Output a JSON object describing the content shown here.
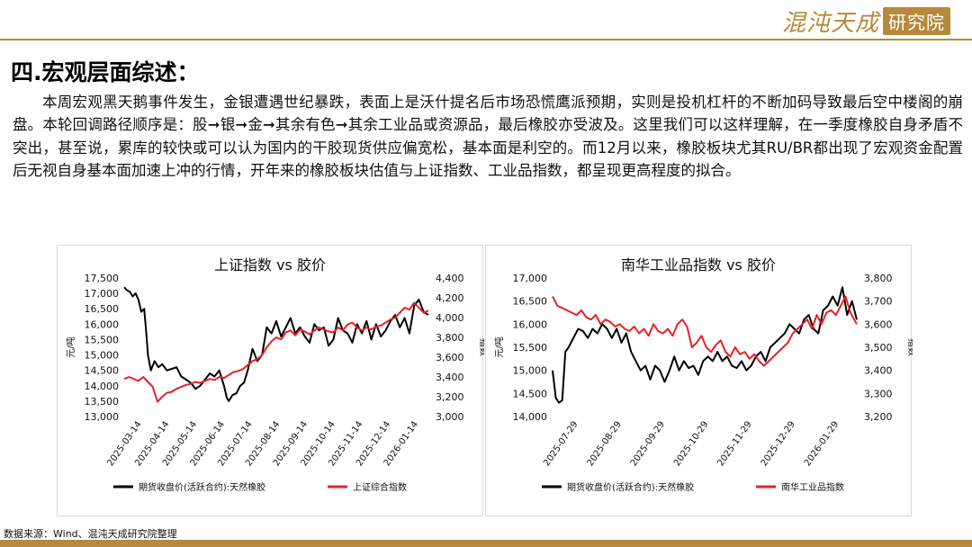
{
  "header": {
    "logo_main": "混沌天成",
    "logo_sub": "研究院"
  },
  "section_title": "四.宏观层面综述：",
  "paragraph": "本周宏观黑天鹅事件发生，金银遭遇世纪暴跌，表面上是沃什提名后市场恐慌鹰派预期，实则是投机杠杆的不断加码导致最后空中楼阁的崩盘。本轮回调路径顺序是：股➞银➞金➞其余有色➞其余工业品或资源品，最后橡胶亦受波及。这里我们可以这样理解，在一季度橡胶自身矛盾不突出，甚至说，累库的较快或可以认为国内的干胶现货供应偏宽松，基本面是利空的。而12月以来，橡胶板块尤其RU/BR都出现了宏观资金配置后无视自身基本面加速上冲的行情，开年来的橡胶板块估值与上证指数、工业品指数，都呈现更高程度的拟合。",
  "source": "数据来源：Wind、混沌天成研究院整理",
  "colors": {
    "rubber": "#000000",
    "index": "#e8202a",
    "accent": "#b58a3c"
  },
  "chart_data": [
    {
      "type": "line",
      "title": "上证指数 vs 胶价",
      "ylabel_left": "元/吨",
      "ylabel_right": "指数",
      "ylim_left": [
        13000,
        17500
      ],
      "ylim_right": [
        3000,
        4400
      ],
      "yticks_left": [
        "13,000",
        "13,500",
        "14,000",
        "14,500",
        "15,000",
        "15,500",
        "16,000",
        "16,500",
        "17,000",
        "17,500"
      ],
      "yticks_right": [
        "3,000",
        "3,200",
        "3,400",
        "3,600",
        "3,800",
        "4,000",
        "4,200",
        "4,400"
      ],
      "xticks": [
        "2025-03-14",
        "2025-04-14",
        "2025-05-14",
        "2025-06-14",
        "2025-07-14",
        "2025-08-14",
        "2025-09-14",
        "2025-10-14",
        "2025-11-14",
        "2025-12-14",
        "2026-01-14"
      ],
      "series": [
        {
          "name": "期货收盘价(活跃合约):天然橡胶",
          "axis": "left",
          "x": [
            0,
            3,
            6,
            9,
            12,
            15,
            18,
            21,
            23,
            25,
            28,
            32,
            36,
            40,
            45,
            50,
            55,
            60,
            65,
            70,
            75,
            80,
            85,
            90,
            95,
            100,
            105,
            108,
            110,
            114,
            118,
            122,
            126,
            130,
            135,
            140,
            145,
            150,
            155,
            160,
            165,
            170,
            175,
            180,
            185,
            190,
            195,
            200,
            205,
            210,
            215,
            220,
            225,
            230,
            235,
            240,
            245,
            250,
            255,
            260,
            265,
            270,
            275,
            280,
            285,
            290,
            295,
            300,
            305,
            310,
            315,
            320
          ],
          "values": [
            17200,
            17100,
            17050,
            16900,
            17000,
            16800,
            16400,
            16500,
            15800,
            15000,
            14500,
            14800,
            14600,
            14700,
            14500,
            14550,
            14600,
            14300,
            14200,
            14100,
            13900,
            14000,
            14200,
            14400,
            14300,
            14500,
            14000,
            13600,
            13500,
            13700,
            13750,
            14000,
            14100,
            14500,
            15200,
            14800,
            15000,
            15900,
            15700,
            16100,
            15600,
            15900,
            16200,
            15700,
            15900,
            15600,
            15400,
            16000,
            15800,
            15900,
            15300,
            15500,
            16200,
            15800,
            15700,
            15400,
            16000,
            15700,
            16100,
            15500,
            16000,
            15600,
            15800,
            16100,
            16300,
            15900,
            16200,
            15700,
            16600,
            16800,
            16400,
            16300
          ]
        },
        {
          "name": "上证综合指数",
          "axis": "right",
          "x": [
            0,
            5,
            10,
            15,
            20,
            25,
            30,
            35,
            40,
            45,
            50,
            55,
            60,
            65,
            70,
            75,
            80,
            85,
            90,
            95,
            100,
            105,
            110,
            115,
            120,
            125,
            130,
            135,
            140,
            145,
            150,
            155,
            160,
            165,
            170,
            175,
            180,
            185,
            190,
            195,
            200,
            205,
            210,
            215,
            220,
            225,
            230,
            235,
            240,
            245,
            250,
            255,
            260,
            265,
            270,
            275,
            280,
            285,
            290,
            295,
            300,
            305,
            310,
            315,
            320
          ],
          "values": [
            3380,
            3400,
            3380,
            3360,
            3400,
            3350,
            3300,
            3150,
            3200,
            3240,
            3250,
            3280,
            3300,
            3320,
            3330,
            3350,
            3340,
            3360,
            3380,
            3370,
            3400,
            3390,
            3420,
            3450,
            3460,
            3480,
            3520,
            3560,
            3580,
            3620,
            3700,
            3760,
            3800,
            3780,
            3850,
            3870,
            3820,
            3880,
            3860,
            3830,
            3870,
            3900,
            3880,
            3860,
            3850,
            3900,
            3870,
            3930,
            3950,
            3900,
            3870,
            3900,
            3880,
            3910,
            3920,
            3950,
            3980,
            4000,
            4050,
            4100,
            4080,
            4150,
            4100,
            4050,
            4070
          ]
        }
      ]
    },
    {
      "type": "line",
      "title": "南华工业品指数 vs 胶价",
      "ylabel_left": "元/吨",
      "ylabel_right": "指数",
      "ylim_left": [
        14000,
        17000
      ],
      "ylim_right": [
        3200,
        3800
      ],
      "yticks_left": [
        "14,000",
        "14,500",
        "15,000",
        "15,500",
        "16,000",
        "16,500",
        "17,000"
      ],
      "yticks_right": [
        "3,200",
        "3,300",
        "3,400",
        "3,500",
        "3,600",
        "3,700",
        "3,800"
      ],
      "xticks": [
        "2025-07-29",
        "2025-08-29",
        "2025-09-29",
        "2025-10-29",
        "2025-11-29",
        "2025-12-29",
        "2026-01-29"
      ],
      "series": [
        {
          "name": "期货收盘价(活跃合约):天然橡胶",
          "axis": "left",
          "x": [
            0,
            2,
            4,
            6,
            8,
            10,
            13,
            16,
            19,
            22,
            25,
            28,
            31,
            34,
            37,
            40,
            43,
            46,
            49,
            52,
            55,
            58,
            61,
            64,
            67,
            70,
            73,
            76,
            79,
            82,
            85,
            88,
            91,
            94,
            97,
            100,
            103,
            106,
            109,
            112,
            115,
            118,
            121,
            124,
            127,
            130,
            133,
            136,
            139,
            142,
            145,
            148,
            151,
            154,
            157,
            160,
            163,
            166,
            169,
            172,
            175,
            178,
            181,
            184,
            187,
            190
          ],
          "values": [
            15000,
            14400,
            14300,
            14350,
            15400,
            15500,
            15700,
            15900,
            15850,
            15700,
            15900,
            15800,
            16000,
            15900,
            15700,
            15900,
            15600,
            15800,
            15400,
            15200,
            15000,
            15100,
            14800,
            15100,
            15000,
            14750,
            15000,
            15300,
            15000,
            15200,
            15050,
            15100,
            14900,
            15200,
            15300,
            15200,
            15400,
            15200,
            15300,
            15100,
            15050,
            15200,
            15000,
            15100,
            15300,
            15400,
            15200,
            15500,
            15600,
            15700,
            15800,
            16000,
            15900,
            15800,
            16100,
            16200,
            15900,
            15800,
            16300,
            16400,
            16600,
            16400,
            16800,
            16200,
            16500,
            16100
          ]
        },
        {
          "name": "南华工业品指数",
          "axis": "right",
          "x": [
            0,
            3,
            6,
            9,
            12,
            15,
            18,
            21,
            24,
            27,
            30,
            33,
            36,
            39,
            42,
            45,
            48,
            51,
            54,
            57,
            60,
            63,
            66,
            69,
            72,
            75,
            78,
            81,
            84,
            87,
            90,
            93,
            96,
            99,
            102,
            105,
            108,
            111,
            114,
            117,
            120,
            123,
            126,
            129,
            132,
            135,
            138,
            141,
            144,
            147,
            150,
            153,
            156,
            159,
            162,
            165,
            168,
            171,
            174,
            177,
            180,
            183,
            186,
            190
          ],
          "values": [
            3720,
            3680,
            3670,
            3660,
            3650,
            3640,
            3660,
            3630,
            3620,
            3640,
            3600,
            3620,
            3610,
            3590,
            3600,
            3580,
            3570,
            3590,
            3560,
            3580,
            3550,
            3600,
            3570,
            3560,
            3580,
            3550,
            3600,
            3620,
            3590,
            3500,
            3520,
            3550,
            3500,
            3480,
            3510,
            3530,
            3480,
            3460,
            3500,
            3470,
            3480,
            3450,
            3470,
            3440,
            3420,
            3440,
            3460,
            3480,
            3500,
            3520,
            3560,
            3580,
            3600,
            3620,
            3580,
            3640,
            3600,
            3650,
            3660,
            3640,
            3680,
            3720,
            3650,
            3600
          ]
        }
      ]
    }
  ]
}
